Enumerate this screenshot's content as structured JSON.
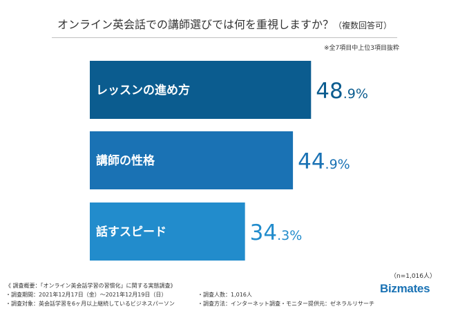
{
  "title": "オンライン英会話での講師選びでは何を重視しますか？",
  "title_paren": "（複数回答可）",
  "note": "※全7項目中上位3項目抜粋",
  "sample_size": "（n=1,016人）",
  "survey": {
    "heading": "《 調査概要：「オンライン英会話学習の習慣化」に関する実態調査》",
    "period": "・調査期間：2021年12月17日（金）〜2021年12月19日（日）",
    "count": "・調査人数：1,016人",
    "target": "・調査対象：英会話学習を6ヶ月以上継続しているビジネスパーソン",
    "method": "・調査方法：インターネット調査",
    "provider": "・モニター提供元：ゼネラルリサーチ"
  },
  "logo": "Bizmates",
  "colors": [
    "#0b5c8f",
    "#1a72b4",
    "#228ccc"
  ],
  "chart_data": {
    "type": "bar",
    "orientation": "horizontal",
    "categories": [
      "レッスンの進め方",
      "講師の性格",
      "話すスピード"
    ],
    "values": [
      48.9,
      44.9,
      34.3
    ],
    "value_int": [
      "48",
      "44",
      "34"
    ],
    "value_dec": [
      ".9%",
      ".9%",
      ".3%"
    ],
    "unit": "%",
    "xlim": [
      0,
      100
    ]
  }
}
